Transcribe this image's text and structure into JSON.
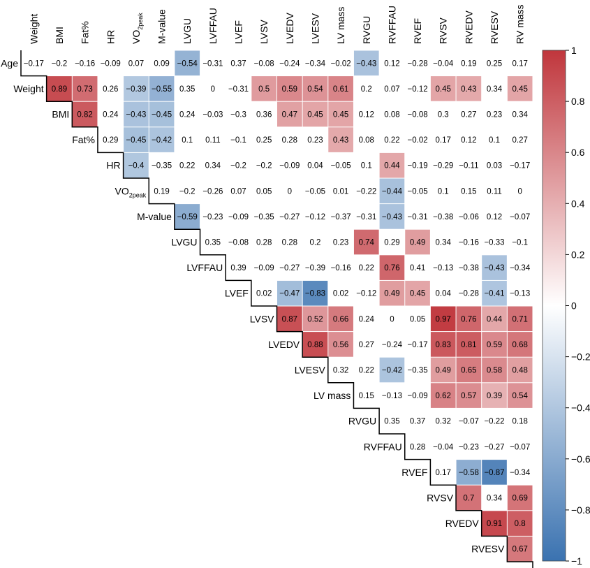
{
  "chart_data": {
    "type": "heatmap",
    "title": "",
    "columns": [
      "Weight",
      "BMI",
      "Fat%",
      "HR",
      "VO2peak",
      "M-value",
      "LVGU",
      "LVFFAU",
      "LVEF",
      "LVSV",
      "LVEDV",
      "LVESV",
      "LV mass",
      "RVGU",
      "RVFFAU",
      "RVEF",
      "RVSV",
      "RVEDV",
      "RVESV",
      "RV mass"
    ],
    "rows": [
      "Age",
      "Weight",
      "BMI",
      "Fat%",
      "HR",
      "VO2peak",
      "M-value",
      "LVGU",
      "LVFFAU",
      "LVEF",
      "LVSV",
      "LVEDV",
      "LVESV",
      "LV mass",
      "RVGU",
      "RVFFAU",
      "RVEF",
      "RVSV",
      "RVEDV",
      "RVESV"
    ],
    "vo2_label": {
      "main": "VO",
      "sub": "2peak"
    },
    "values": [
      [
        -0.17,
        -0.2,
        -0.16,
        -0.09,
        0.07,
        0.09,
        -0.54,
        -0.31,
        0.37,
        -0.08,
        -0.24,
        -0.34,
        -0.02,
        -0.43,
        0.12,
        -0.28,
        -0.04,
        0.19,
        0.25,
        0.17
      ],
      [
        null,
        0.89,
        0.73,
        0.26,
        -0.39,
        -0.55,
        0.35,
        0,
        -0.31,
        0.5,
        0.59,
        0.54,
        0.61,
        0.2,
        0.07,
        -0.12,
        0.45,
        0.43,
        0.34,
        0.45
      ],
      [
        null,
        null,
        0.82,
        0.24,
        -0.43,
        -0.45,
        0.24,
        -0.03,
        -0.3,
        0.36,
        0.47,
        0.45,
        0.45,
        0.12,
        0.08,
        -0.08,
        0.3,
        0.27,
        0.23,
        0.34
      ],
      [
        null,
        null,
        null,
        0.29,
        -0.45,
        -0.42,
        0.1,
        0.11,
        -0.1,
        0.25,
        0.28,
        0.23,
        0.43,
        0.08,
        0.22,
        -0.02,
        0.17,
        0.12,
        0.1,
        0.27
      ],
      [
        null,
        null,
        null,
        null,
        -0.4,
        -0.35,
        0.22,
        0.34,
        -0.2,
        -0.2,
        -0.09,
        0.04,
        -0.05,
        0.1,
        0.44,
        -0.19,
        -0.29,
        -0.11,
        0.03,
        -0.17
      ],
      [
        null,
        null,
        null,
        null,
        null,
        0.19,
        -0.2,
        -0.26,
        0.07,
        0.05,
        0,
        -0.05,
        0.01,
        -0.22,
        -0.44,
        -0.05,
        0.1,
        0.15,
        0.11,
        0
      ],
      [
        null,
        null,
        null,
        null,
        null,
        null,
        -0.59,
        -0.23,
        -0.09,
        -0.35,
        -0.27,
        -0.12,
        -0.37,
        -0.31,
        -0.43,
        -0.31,
        -0.38,
        -0.06,
        0.12,
        -0.07
      ],
      [
        null,
        null,
        null,
        null,
        null,
        null,
        null,
        0.35,
        -0.08,
        0.28,
        0.28,
        0.2,
        0.23,
        0.74,
        0.29,
        0.49,
        0.34,
        -0.16,
        -0.33,
        -0.1
      ],
      [
        null,
        null,
        null,
        null,
        null,
        null,
        null,
        null,
        0.39,
        -0.09,
        -0.27,
        -0.39,
        -0.16,
        0.22,
        0.76,
        0.41,
        -0.13,
        -0.38,
        -0.43,
        -0.34
      ],
      [
        null,
        null,
        null,
        null,
        null,
        null,
        null,
        null,
        null,
        0.02,
        -0.47,
        -0.83,
        0.02,
        -0.12,
        0.49,
        0.45,
        0.04,
        -0.28,
        -0.41,
        -0.13
      ],
      [
        null,
        null,
        null,
        null,
        null,
        null,
        null,
        null,
        null,
        null,
        0.87,
        0.52,
        0.66,
        0.24,
        0,
        0.05,
        0.97,
        0.76,
        0.44,
        0.71
      ],
      [
        null,
        null,
        null,
        null,
        null,
        null,
        null,
        null,
        null,
        null,
        null,
        0.88,
        0.56,
        0.27,
        -0.24,
        -0.17,
        0.83,
        0.81,
        0.59,
        0.68
      ],
      [
        null,
        null,
        null,
        null,
        null,
        null,
        null,
        null,
        null,
        null,
        null,
        null,
        0.32,
        0.22,
        -0.42,
        -0.35,
        0.49,
        0.65,
        0.58,
        0.48
      ],
      [
        null,
        null,
        null,
        null,
        null,
        null,
        null,
        null,
        null,
        null,
        null,
        null,
        null,
        0.15,
        -0.13,
        -0.09,
        0.62,
        0.57,
        0.39,
        0.54
      ],
      [
        null,
        null,
        null,
        null,
        null,
        null,
        null,
        null,
        null,
        null,
        null,
        null,
        null,
        null,
        0.35,
        0.37,
        0.32,
        -0.07,
        -0.22,
        0.18
      ],
      [
        null,
        null,
        null,
        null,
        null,
        null,
        null,
        null,
        null,
        null,
        null,
        null,
        null,
        null,
        null,
        0.28,
        -0.04,
        -0.23,
        -0.27,
        -0.07
      ],
      [
        null,
        null,
        null,
        null,
        null,
        null,
        null,
        null,
        null,
        null,
        null,
        null,
        null,
        null,
        null,
        null,
        0.17,
        -0.58,
        -0.87,
        -0.34
      ],
      [
        null,
        null,
        null,
        null,
        null,
        null,
        null,
        null,
        null,
        null,
        null,
        null,
        null,
        null,
        null,
        null,
        null,
        0.7,
        0.34,
        0.69
      ],
      [
        null,
        null,
        null,
        null,
        null,
        null,
        null,
        null,
        null,
        null,
        null,
        null,
        null,
        null,
        null,
        null,
        null,
        null,
        0.91,
        0.8
      ],
      [
        null,
        null,
        null,
        null,
        null,
        null,
        null,
        null,
        null,
        null,
        null,
        null,
        null,
        null,
        null,
        null,
        null,
        null,
        null,
        0.67
      ]
    ],
    "colored_cells": [
      [
        0,
        6
      ],
      [
        0,
        13
      ],
      [
        1,
        1
      ],
      [
        1,
        2
      ],
      [
        1,
        4
      ],
      [
        1,
        5
      ],
      [
        1,
        9
      ],
      [
        1,
        10
      ],
      [
        1,
        11
      ],
      [
        1,
        12
      ],
      [
        1,
        16
      ],
      [
        1,
        17
      ],
      [
        1,
        19
      ],
      [
        2,
        2
      ],
      [
        2,
        4
      ],
      [
        2,
        5
      ],
      [
        2,
        10
      ],
      [
        2,
        11
      ],
      [
        2,
        12
      ],
      [
        3,
        4
      ],
      [
        3,
        5
      ],
      [
        3,
        12
      ],
      [
        4,
        4
      ],
      [
        4,
        14
      ],
      [
        5,
        14
      ],
      [
        6,
        6
      ],
      [
        6,
        14
      ],
      [
        7,
        13
      ],
      [
        7,
        15
      ],
      [
        8,
        14
      ],
      [
        8,
        18
      ],
      [
        9,
        10
      ],
      [
        9,
        11
      ],
      [
        9,
        14
      ],
      [
        9,
        15
      ],
      [
        9,
        18
      ],
      [
        10,
        10
      ],
      [
        10,
        11
      ],
      [
        10,
        12
      ],
      [
        10,
        16
      ],
      [
        10,
        17
      ],
      [
        10,
        18
      ],
      [
        10,
        19
      ],
      [
        11,
        11
      ],
      [
        11,
        12
      ],
      [
        11,
        16
      ],
      [
        11,
        17
      ],
      [
        11,
        18
      ],
      [
        11,
        19
      ],
      [
        12,
        14
      ],
      [
        12,
        16
      ],
      [
        12,
        17
      ],
      [
        12,
        18
      ],
      [
        12,
        19
      ],
      [
        13,
        16
      ],
      [
        13,
        17
      ],
      [
        13,
        18
      ],
      [
        13,
        19
      ],
      [
        16,
        17
      ],
      [
        16,
        18
      ],
      [
        17,
        17
      ],
      [
        17,
        19
      ],
      [
        18,
        18
      ],
      [
        18,
        19
      ],
      [
        19,
        19
      ]
    ],
    "color_scale": {
      "min": -1,
      "max": 1,
      "stops": [
        {
          "value": -1,
          "color": "#3a72b0"
        },
        {
          "value": 0,
          "color": "#ffffff"
        },
        {
          "value": 1,
          "color": "#c0363c"
        }
      ]
    },
    "colorbar_ticks": [
      1,
      0.8,
      0.6,
      0.4,
      0.2,
      0,
      -0.2,
      -0.4,
      -0.6,
      -0.8,
      -1
    ],
    "colorbar_tick_labels": [
      "1",
      "0.8",
      "0.6",
      "0.4",
      "0.2",
      "0",
      "−0.2",
      "−0.4",
      "−0.6",
      "−0.8",
      "−1"
    ]
  }
}
